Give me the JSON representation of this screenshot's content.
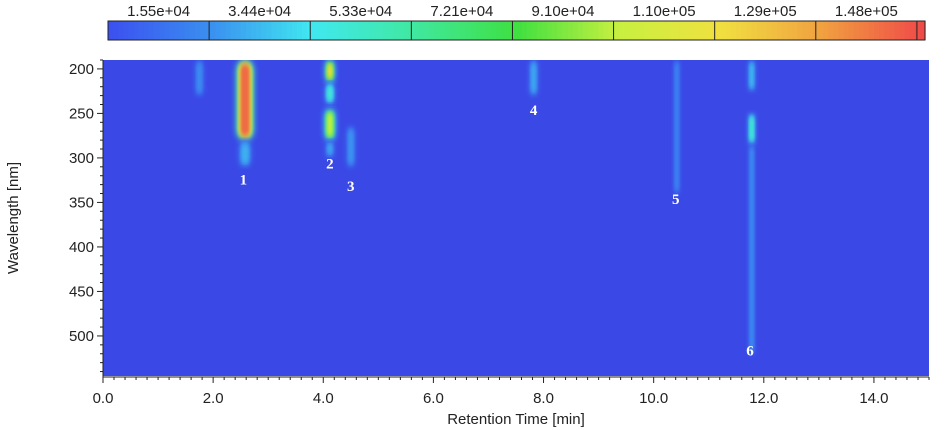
{
  "chart_data": {
    "type": "heatmap",
    "xlabel": "Retention Time [min]",
    "ylabel": "Wavelength [nm]",
    "xlim": [
      0,
      15
    ],
    "ylim": [
      545,
      190
    ],
    "x_ticks": [
      0,
      2,
      4,
      6,
      8,
      10,
      12,
      14
    ],
    "x_tick_labels": [
      "0.0",
      "2.0",
      "4.0",
      "6.0",
      "8.0",
      "10.0",
      "12.0",
      "14.0"
    ],
    "y_ticks": [
      200,
      250,
      300,
      350,
      400,
      450,
      500
    ],
    "y_tick_labels": [
      "200",
      "250",
      "300",
      "350",
      "400",
      "450",
      "500"
    ],
    "colorbar": {
      "labels": [
        "1.55e+04",
        "3.44e+04",
        "5.33e+04",
        "7.21e+04",
        "9.10e+04",
        "1.10e+05",
        "1.29e+05",
        "1.48e+05"
      ],
      "min": 6000,
      "max": 157000,
      "colors": [
        "#3b4ff0",
        "#3a8ff0",
        "#40e8f0",
        "#40e8a0",
        "#3ee040",
        "#c8f040",
        "#f0e040",
        "#f0a040",
        "#f04848"
      ]
    },
    "background_color": "#3a48e6",
    "peaks": [
      {
        "label": "1",
        "rt": 2.55,
        "label_x": 2.55,
        "label_wavelength": 330
      },
      {
        "label": "2",
        "rt": 4.12,
        "label_x": 4.12,
        "label_wavelength": 312
      },
      {
        "label": "3",
        "rt": 4.5,
        "label_x": 4.5,
        "label_wavelength": 337
      },
      {
        "label": "4",
        "rt": 7.82,
        "label_x": 7.82,
        "label_wavelength": 252
      },
      {
        "label": "5",
        "rt": 10.4,
        "label_x": 10.4,
        "label_wavelength": 352
      },
      {
        "label": "6",
        "rt": 11.75,
        "label_x": 11.75,
        "label_wavelength": 522
      }
    ],
    "features": [
      {
        "rt": 2.58,
        "wl_start": 190,
        "wl_end": 280,
        "halfwidth": 0.13,
        "intensity": 150000
      },
      {
        "rt": 2.58,
        "wl_start": 280,
        "wl_end": 310,
        "halfwidth": 0.09,
        "intensity": 32000
      },
      {
        "rt": 1.75,
        "wl_start": 190,
        "wl_end": 230,
        "halfwidth": 0.06,
        "intensity": 24000
      },
      {
        "rt": 4.12,
        "wl_start": 190,
        "wl_end": 215,
        "halfwidth": 0.07,
        "intensity": 120000
      },
      {
        "rt": 4.12,
        "wl_start": 215,
        "wl_end": 240,
        "halfwidth": 0.07,
        "intensity": 50000
      },
      {
        "rt": 4.12,
        "wl_start": 245,
        "wl_end": 280,
        "halfwidth": 0.08,
        "intensity": 100000
      },
      {
        "rt": 4.12,
        "wl_start": 280,
        "wl_end": 300,
        "halfwidth": 0.06,
        "intensity": 30000
      },
      {
        "rt": 4.5,
        "wl_start": 265,
        "wl_end": 310,
        "halfwidth": 0.06,
        "intensity": 26000
      },
      {
        "rt": 7.82,
        "wl_start": 190,
        "wl_end": 230,
        "halfwidth": 0.06,
        "intensity": 30000
      },
      {
        "rt": 10.42,
        "wl_start": 190,
        "wl_end": 340,
        "halfwidth": 0.04,
        "intensity": 22000
      },
      {
        "rt": 11.78,
        "wl_start": 190,
        "wl_end": 225,
        "halfwidth": 0.05,
        "intensity": 34000
      },
      {
        "rt": 11.78,
        "wl_start": 250,
        "wl_end": 285,
        "halfwidth": 0.05,
        "intensity": 52000
      },
      {
        "rt": 11.78,
        "wl_start": 285,
        "wl_end": 520,
        "halfwidth": 0.04,
        "intensity": 24000
      }
    ]
  }
}
